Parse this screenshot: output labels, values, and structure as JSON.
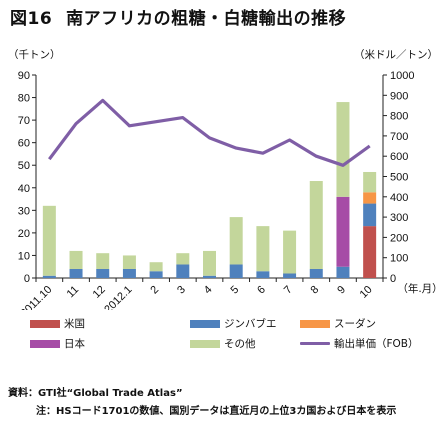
{
  "figure": {
    "number": "図16",
    "title": "南アフリカの粗糖・白糖輸出の推移",
    "source": "資料：GTI社“Global Trade Atlas”",
    "note": "注：HSコード1701の数値、国別データは直近月の上位3カ国および日本を表示"
  },
  "chart_data": {
    "type": "bar",
    "stacked": true,
    "categories": [
      "2011.10",
      "11",
      "12",
      "2012.1",
      "2",
      "3",
      "4",
      "5",
      "6",
      "7",
      "8",
      "9",
      "10"
    ],
    "xlabel": "（年.月）",
    "ylabel_left": "（千トン）",
    "ylabel_right": "（米ドル／トン）",
    "ylim": [
      0,
      90
    ],
    "yticks": [
      0,
      10,
      20,
      30,
      40,
      50,
      60,
      70,
      80,
      90
    ],
    "y2lim": [
      0,
      1000
    ],
    "y2ticks": [
      0,
      100,
      200,
      300,
      400,
      500,
      600,
      700,
      800,
      900,
      1000
    ],
    "grid": false,
    "legend_position": "bottom",
    "series": [
      {
        "name": "米国",
        "color": "#c0504d",
        "values": [
          0,
          0,
          0,
          0,
          0,
          0,
          0,
          0,
          0,
          0,
          0,
          0,
          23
        ]
      },
      {
        "name": "ジンバブエ",
        "color": "#4f81bd",
        "values": [
          1,
          4,
          4,
          4,
          3,
          6,
          1,
          6,
          3,
          2,
          4,
          5,
          10
        ]
      },
      {
        "name": "スーダン",
        "color": "#f79646",
        "values": [
          0,
          0,
          0,
          0,
          0,
          0,
          0,
          0,
          0,
          0,
          0,
          0,
          5
        ]
      },
      {
        "name": "日本",
        "color": "#a64ca6",
        "values": [
          0,
          0,
          0,
          0,
          0,
          0,
          0,
          0,
          0,
          0,
          0,
          31,
          0
        ]
      },
      {
        "name": "その他",
        "color": "#c3d69b",
        "values": [
          31,
          8,
          7,
          6,
          4,
          5,
          11,
          21,
          20,
          19,
          39,
          42,
          9
        ]
      },
      {
        "name": "輸出単価（FOB）",
        "type": "line",
        "axis": "right",
        "color": "#7f5ea6",
        "values": [
          585,
          760,
          875,
          750,
          770,
          790,
          690,
          640,
          615,
          680,
          600,
          555,
          650
        ]
      }
    ]
  }
}
